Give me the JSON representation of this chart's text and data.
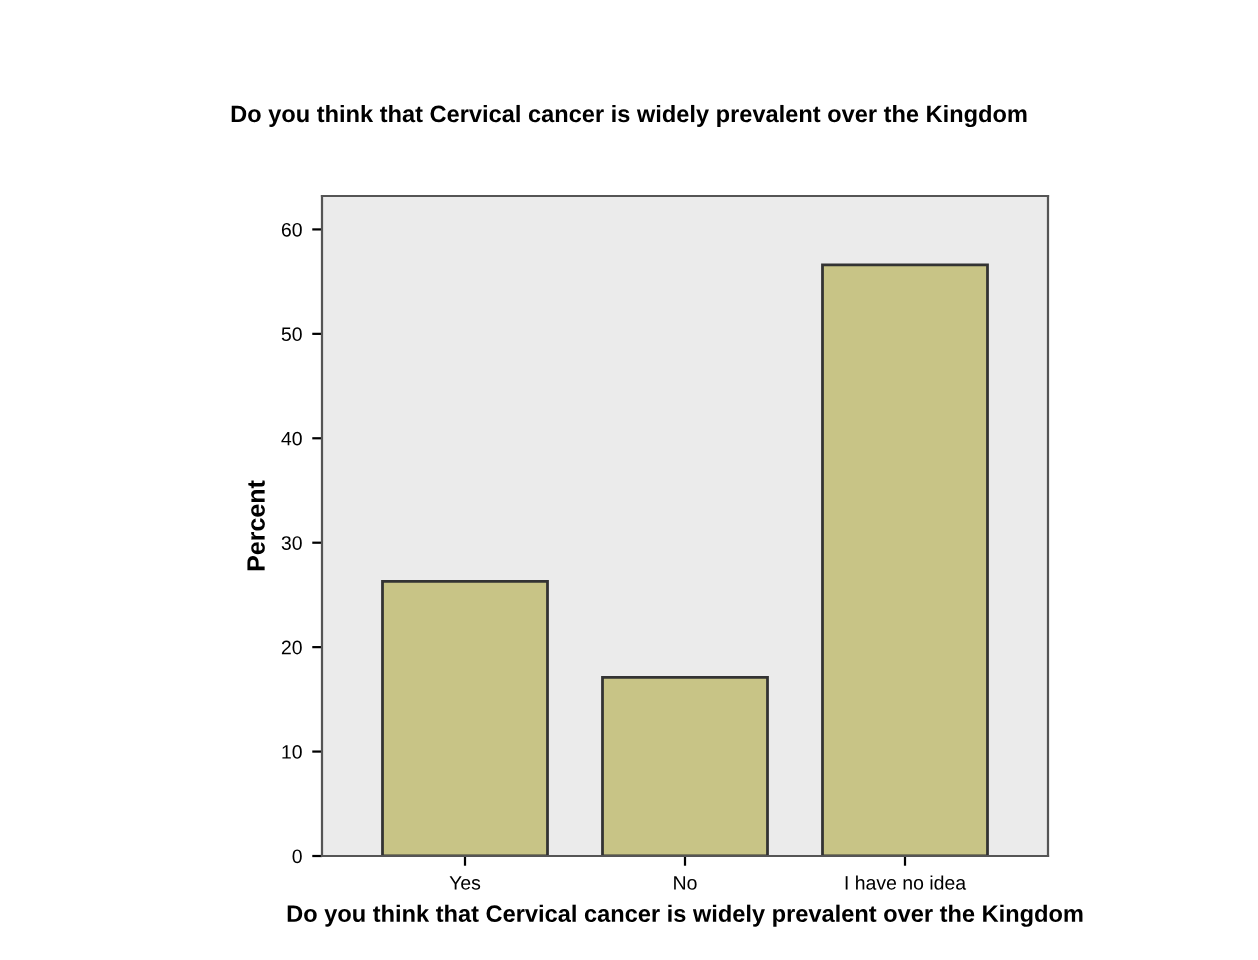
{
  "chart_data": {
    "type": "bar",
    "title": "Do you think that Cervical cancer is widely prevalent over the Kingdom",
    "xlabel": "Do you think that Cervical cancer is widely prevalent over the Kingdom",
    "ylabel": "Percent",
    "categories": [
      "Yes",
      "No",
      "I have no idea"
    ],
    "values": [
      26.3,
      17.1,
      56.6
    ],
    "color": "#c8c486",
    "ylim": [
      0,
      63.2
    ],
    "yticks": [
      0,
      10,
      20,
      30,
      40,
      50,
      60
    ],
    "grid": false
  }
}
